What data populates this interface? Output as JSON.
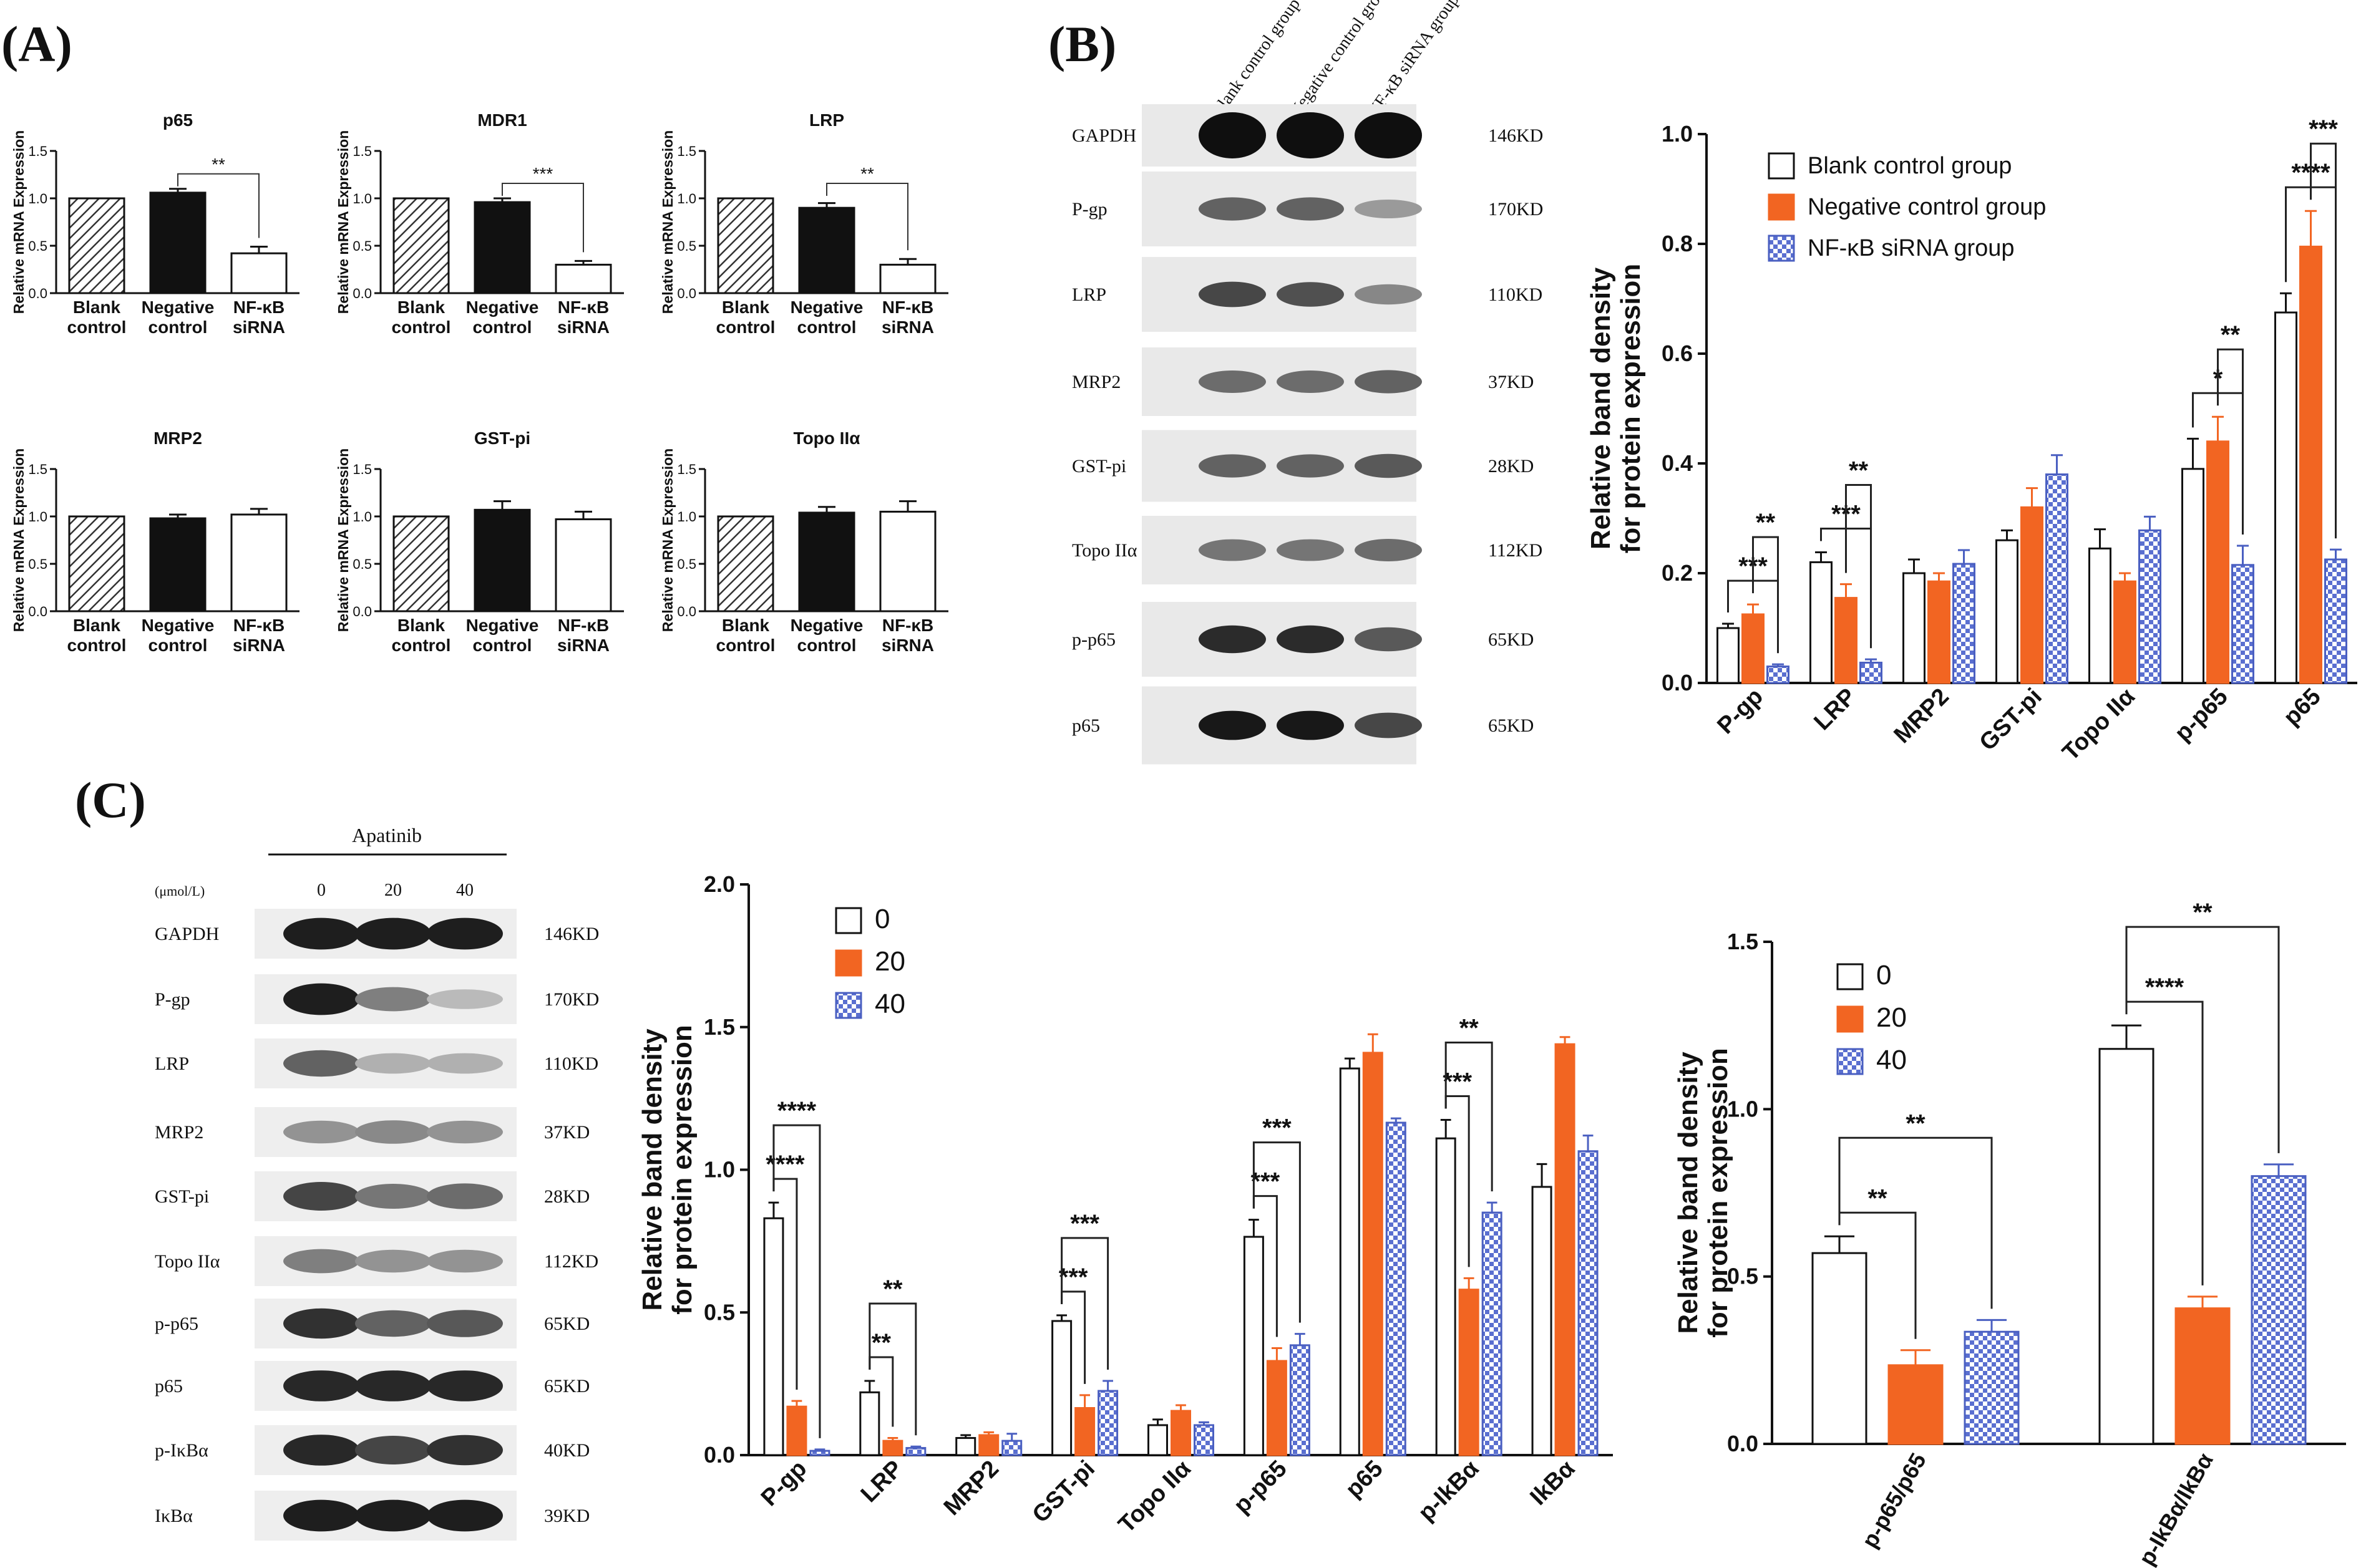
{
  "panel_labels": {
    "A": "(A)",
    "B": "(B)",
    "C": "(C)"
  },
  "colors": {
    "orange": "#f26522",
    "blue": "#4a5fc1",
    "black": "#111111",
    "dark": "#222222"
  },
  "ylabel_mrna": "Relative mRNA Expression",
  "ylabel_band": [
    "Relative band density",
    "for protein expression"
  ],
  "western_B": {
    "lane_headers": [
      "Blank control group",
      "Negative control group",
      "NF-κB siRNA group"
    ],
    "rows": [
      {
        "label": "GAPDH",
        "kd": "146KD"
      },
      {
        "label": "P-gp",
        "kd": "170KD"
      },
      {
        "label": "LRP",
        "kd": "110KD"
      },
      {
        "label": "MRP2",
        "kd": "37KD"
      },
      {
        "label": "GST-pi",
        "kd": "28KD"
      },
      {
        "label": "Topo IIα",
        "kd": "112KD"
      },
      {
        "label": "p-p65",
        "kd": "65KD"
      },
      {
        "label": "p65",
        "kd": "65KD"
      }
    ]
  },
  "western_C": {
    "treatment": "Apatinib",
    "unit": "(μmol/L)",
    "doses": [
      "0",
      "20",
      "40"
    ],
    "rows": [
      {
        "label": "GAPDH",
        "kd": "146KD"
      },
      {
        "label": "P-gp",
        "kd": "170KD"
      },
      {
        "label": "LRP",
        "kd": "110KD"
      },
      {
        "label": "MRP2",
        "kd": "37KD"
      },
      {
        "label": "GST-pi",
        "kd": "28KD"
      },
      {
        "label": "Topo IIα",
        "kd": "112KD"
      },
      {
        "label": "p-p65",
        "kd": "65KD"
      },
      {
        "label": "p65",
        "kd": "65KD"
      },
      {
        "label": "p-IκBα",
        "kd": "40KD"
      },
      {
        "label": "IκBα",
        "kd": "39KD"
      }
    ]
  },
  "chart_data": [
    {
      "id": "A1",
      "type": "bar",
      "title": "p65",
      "ylabel": "Relative mRNA Expression",
      "ylim": [
        0,
        1.5
      ],
      "yticks": [
        "0.0",
        "0.5",
        "1.0",
        "1.5"
      ],
      "categories": [
        [
          "Blank",
          "control"
        ],
        [
          "Negative",
          "control"
        ],
        [
          "NF-κB",
          "siRNA"
        ]
      ],
      "values": [
        1.0,
        1.06,
        0.42
      ],
      "errors": [
        0,
        0.04,
        0.07
      ],
      "sig": [
        {
          "from": 1,
          "to": 2,
          "label": "**"
        }
      ]
    },
    {
      "id": "A2",
      "type": "bar",
      "title": "MDR1",
      "ylabel": "Relative mRNA Expression",
      "ylim": [
        0,
        1.5
      ],
      "yticks": [
        "0.0",
        "0.5",
        "1.0",
        "1.5"
      ],
      "categories": [
        [
          "Blank",
          "control"
        ],
        [
          "Negative",
          "control"
        ],
        [
          "NF-κB",
          "siRNA"
        ]
      ],
      "values": [
        1.0,
        0.96,
        0.3
      ],
      "errors": [
        0,
        0.04,
        0.04
      ],
      "sig": [
        {
          "from": 1,
          "to": 2,
          "label": "***"
        }
      ]
    },
    {
      "id": "A3",
      "type": "bar",
      "title": "LRP",
      "ylabel": "Relative mRNA Expression",
      "ylim": [
        0,
        1.5
      ],
      "yticks": [
        "0.0",
        "0.5",
        "1.0",
        "1.5"
      ],
      "categories": [
        [
          "Blank",
          "control"
        ],
        [
          "Negative",
          "control"
        ],
        [
          "NF-κB",
          "siRNA"
        ]
      ],
      "values": [
        1.0,
        0.9,
        0.3
      ],
      "errors": [
        0,
        0.05,
        0.06
      ],
      "sig": [
        {
          "from": 1,
          "to": 2,
          "label": "**"
        }
      ]
    },
    {
      "id": "A4",
      "type": "bar",
      "title": "MRP2",
      "ylabel": "Relative mRNA Expression",
      "ylim": [
        0,
        1.5
      ],
      "yticks": [
        "0.0",
        "0.5",
        "1.0",
        "1.5"
      ],
      "categories": [
        [
          "Blank",
          "control"
        ],
        [
          "Negative",
          "control"
        ],
        [
          "NF-κB",
          "siRNA"
        ]
      ],
      "values": [
        1.0,
        0.98,
        1.02
      ],
      "errors": [
        0,
        0.04,
        0.06
      ],
      "sig": []
    },
    {
      "id": "A5",
      "type": "bar",
      "title": "GST-pi",
      "ylabel": "Relative mRNA Expression",
      "ylim": [
        0,
        1.5
      ],
      "yticks": [
        "0.0",
        "0.5",
        "1.0",
        "1.5"
      ],
      "categories": [
        [
          "Blank",
          "control"
        ],
        [
          "Negative",
          "control"
        ],
        [
          "NF-κB",
          "siRNA"
        ]
      ],
      "values": [
        1.0,
        1.07,
        0.97
      ],
      "errors": [
        0,
        0.09,
        0.08
      ],
      "sig": []
    },
    {
      "id": "A6",
      "type": "bar",
      "title": "Topo IIα",
      "ylabel": "Relative mRNA Expression",
      "ylim": [
        0,
        1.5
      ],
      "yticks": [
        "0.0",
        "0.5",
        "1.0",
        "1.5"
      ],
      "categories": [
        [
          "Blank",
          "control"
        ],
        [
          "Negative",
          "control"
        ],
        [
          "NF-κB",
          "siRNA"
        ]
      ],
      "values": [
        1.0,
        1.04,
        1.05
      ],
      "errors": [
        0,
        0.06,
        0.11
      ],
      "sig": []
    },
    {
      "id": "B",
      "type": "bar",
      "ylabel": "Relative band density for protein expression",
      "ylim": [
        0,
        1.0
      ],
      "yticks": [
        "0.0",
        "0.2",
        "0.4",
        "0.6",
        "0.8",
        "1.0"
      ],
      "categories": [
        "P-gp",
        "LRP",
        "MRP2",
        "GST-pi",
        "Topo IIα",
        "p-p65",
        "p65"
      ],
      "series": [
        {
          "name": "Blank control group",
          "values": [
            0.1,
            0.22,
            0.2,
            0.26,
            0.245,
            0.39,
            0.675
          ],
          "errors": [
            0.008,
            0.018,
            0.025,
            0.018,
            0.035,
            0.055,
            0.035
          ]
        },
        {
          "name": "Negative control group",
          "values": [
            0.125,
            0.155,
            0.185,
            0.32,
            0.185,
            0.44,
            0.795
          ],
          "errors": [
            0.018,
            0.025,
            0.015,
            0.035,
            0.015,
            0.045,
            0.065
          ]
        },
        {
          "name": "NF-κB siRNA group",
          "values": [
            0.03,
            0.037,
            0.217,
            0.38,
            0.278,
            0.215,
            0.225
          ],
          "errors": [
            0.004,
            0.006,
            0.025,
            0.035,
            0.025,
            0.035,
            0.018
          ]
        }
      ],
      "sig": [
        {
          "cat": 0,
          "from": 0,
          "to": 2,
          "label": "***"
        },
        {
          "cat": 0,
          "from": 1,
          "to": 2,
          "label": "**"
        },
        {
          "cat": 1,
          "from": 0,
          "to": 2,
          "label": "***"
        },
        {
          "cat": 1,
          "from": 1,
          "to": 2,
          "label": "**"
        },
        {
          "cat": 5,
          "from": 0,
          "to": 2,
          "label": "*"
        },
        {
          "cat": 5,
          "from": 1,
          "to": 2,
          "label": "**"
        },
        {
          "cat": 6,
          "from": 0,
          "to": 2,
          "label": "****"
        },
        {
          "cat": 6,
          "from": 1,
          "to": 2,
          "label": "***"
        }
      ]
    },
    {
      "id": "C1",
      "type": "bar",
      "ylabel": "Relative band density for protein expression",
      "ylim": [
        0,
        2.0
      ],
      "yticks": [
        "0.0",
        "0.5",
        "1.0",
        "1.5",
        "2.0"
      ],
      "categories": [
        "P-gp",
        "LRP",
        "MRP2",
        "GST-pi",
        "Topo IIα",
        "p-p65",
        "p65",
        "p-IkBα",
        "IkBα"
      ],
      "series": [
        {
          "name": "0",
          "values": [
            0.83,
            0.22,
            0.06,
            0.47,
            0.105,
            0.765,
            1.355,
            1.11,
            0.94
          ],
          "errors": [
            0.055,
            0.04,
            0.01,
            0.02,
            0.02,
            0.06,
            0.035,
            0.065,
            0.08
          ]
        },
        {
          "name": "20",
          "values": [
            0.17,
            0.05,
            0.07,
            0.165,
            0.155,
            0.33,
            1.41,
            0.58,
            1.44
          ],
          "errors": [
            0.02,
            0.01,
            0.01,
            0.045,
            0.02,
            0.045,
            0.065,
            0.04,
            0.025
          ]
        },
        {
          "name": "40",
          "values": [
            0.015,
            0.025,
            0.05,
            0.225,
            0.105,
            0.385,
            1.165,
            0.85,
            1.065
          ],
          "errors": [
            0.005,
            0.005,
            0.025,
            0.035,
            0.01,
            0.04,
            0.015,
            0.035,
            0.055
          ]
        }
      ],
      "sig": [
        {
          "cat": 0,
          "from": 0,
          "to": 1,
          "label": "****"
        },
        {
          "cat": 0,
          "from": 0,
          "to": 2,
          "label": "****"
        },
        {
          "cat": 1,
          "from": 0,
          "to": 1,
          "label": "**"
        },
        {
          "cat": 1,
          "from": 0,
          "to": 2,
          "label": "**"
        },
        {
          "cat": 3,
          "from": 0,
          "to": 1,
          "label": "***"
        },
        {
          "cat": 3,
          "from": 0,
          "to": 2,
          "label": "***"
        },
        {
          "cat": 5,
          "from": 0,
          "to": 1,
          "label": "***"
        },
        {
          "cat": 5,
          "from": 0,
          "to": 2,
          "label": "***"
        },
        {
          "cat": 7,
          "from": 0,
          "to": 1,
          "label": "***"
        },
        {
          "cat": 7,
          "from": 0,
          "to": 2,
          "label": "**"
        }
      ]
    },
    {
      "id": "C2",
      "type": "bar",
      "ylabel": "Relative band density for protein expression",
      "ylim": [
        0,
        1.5
      ],
      "yticks": [
        "0.0",
        "0.5",
        "1.0",
        "1.5"
      ],
      "categories": [
        "p-p65/p65",
        "p-IkBα/IkBα"
      ],
      "series": [
        {
          "name": "0",
          "values": [
            0.57,
            1.18
          ],
          "errors": [
            0.05,
            0.07
          ]
        },
        {
          "name": "20",
          "values": [
            0.235,
            0.405
          ],
          "errors": [
            0.045,
            0.035
          ]
        },
        {
          "name": "40",
          "values": [
            0.335,
            0.8
          ],
          "errors": [
            0.035,
            0.035
          ]
        }
      ],
      "sig": [
        {
          "cat": 0,
          "from": 0,
          "to": 1,
          "label": "**"
        },
        {
          "cat": 0,
          "from": 0,
          "to": 2,
          "label": "**"
        },
        {
          "cat": 1,
          "from": 0,
          "to": 1,
          "label": "****"
        },
        {
          "cat": 1,
          "from": 0,
          "to": 2,
          "label": "**"
        }
      ]
    }
  ]
}
